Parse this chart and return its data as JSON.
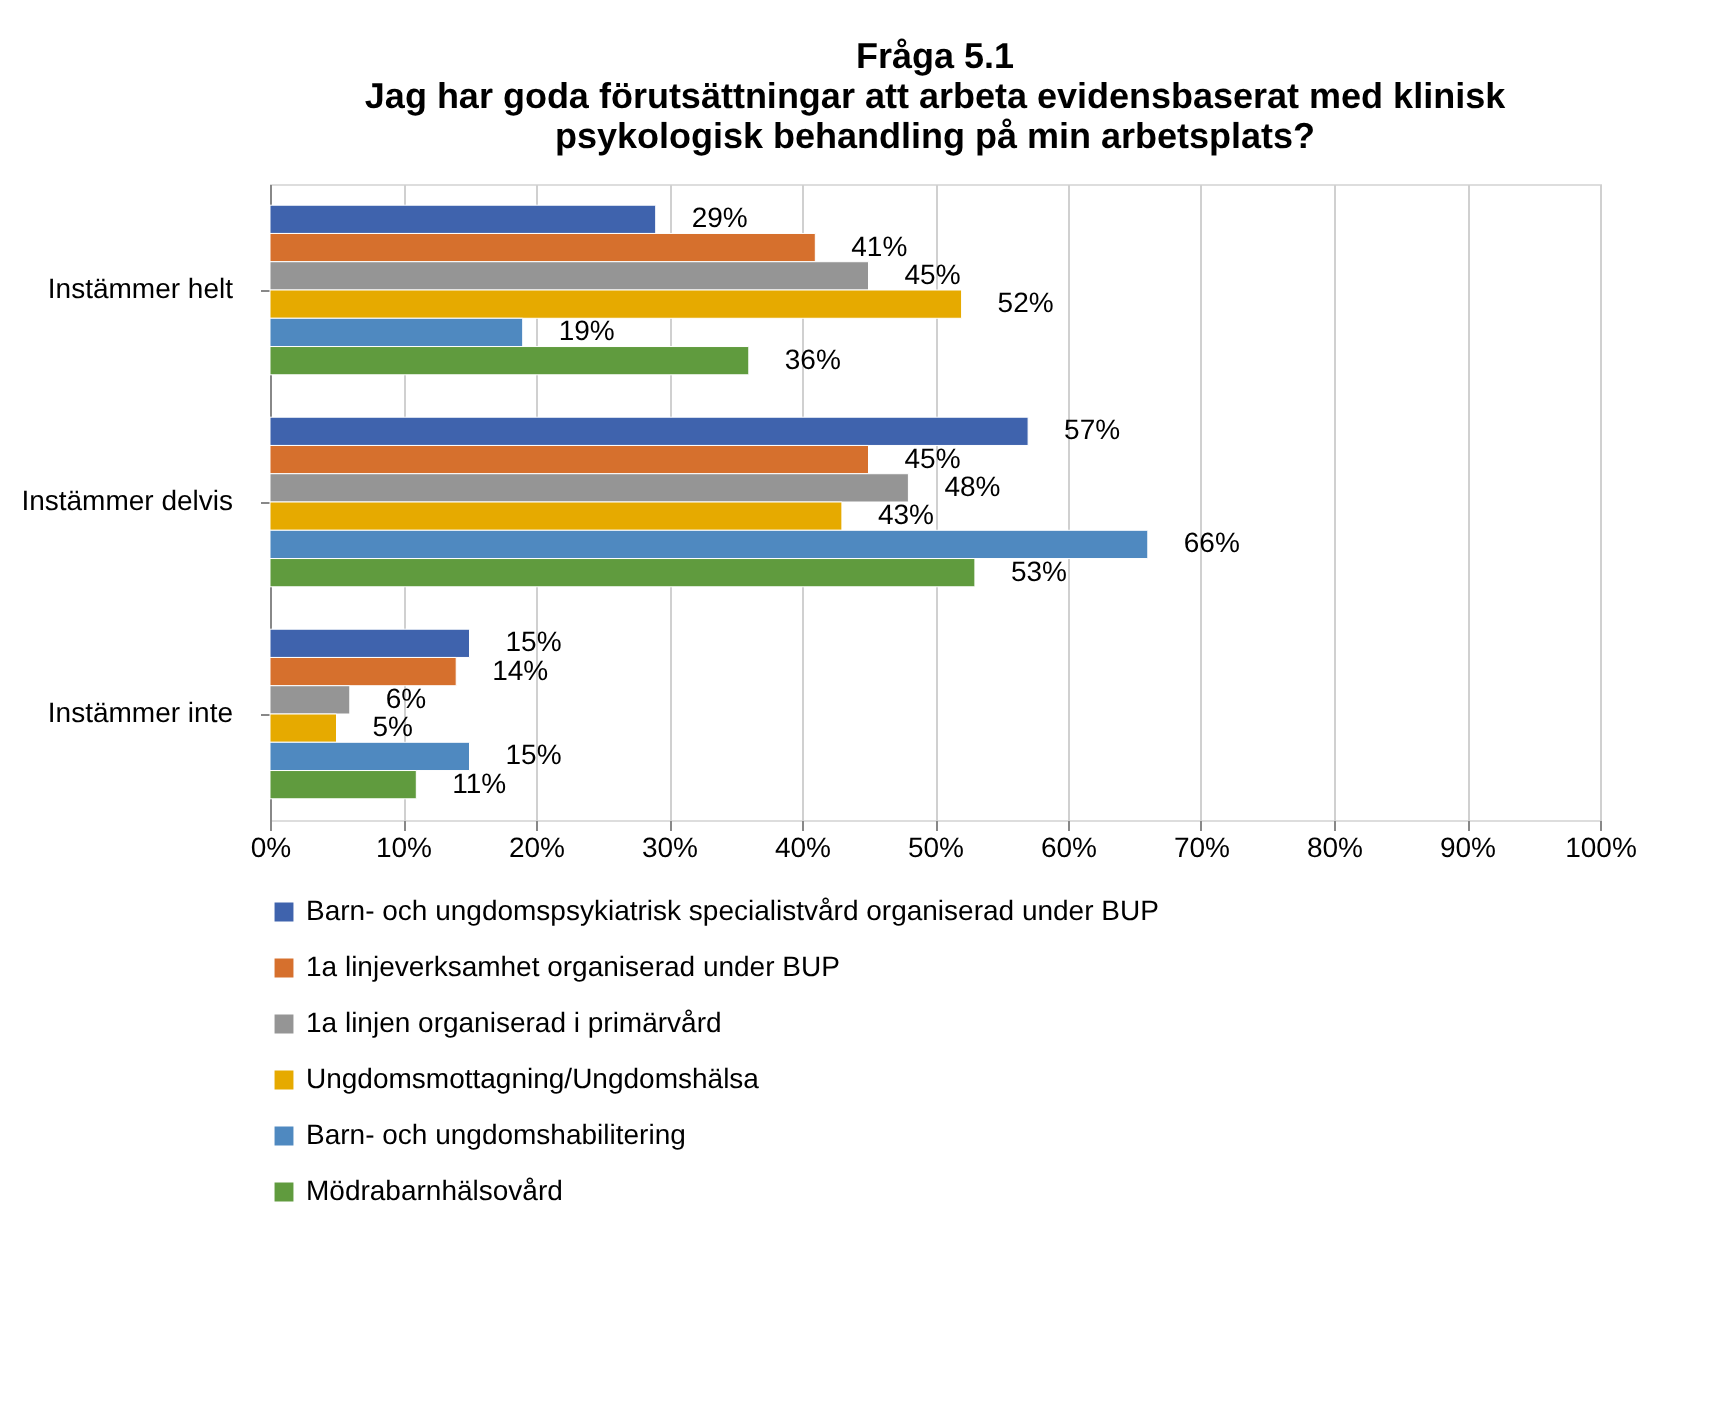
{
  "chart_data": {
    "type": "bar",
    "orientation": "horizontal",
    "title": "Fråga 5.1\nJag har goda förutsättningar att arbeta evidensbaserat med klinisk\npsykologisk behandling på min arbetsplats?",
    "categories": [
      "Instämmer helt",
      "Instämmer delvis",
      "Instämmer inte"
    ],
    "series": [
      {
        "name": "Barn- och ungdomspsykiatrisk specialistvård organiserad under BUP",
        "color": "#3f63ad",
        "values": [
          29,
          57,
          15
        ],
        "value_labels": [
          "29%",
          "57%",
          "15%"
        ]
      },
      {
        "name": "1a linjeverksamhet organiserad under BUP",
        "color": "#d6702d",
        "values": [
          41,
          45,
          14
        ],
        "value_labels": [
          "41%",
          "45%",
          "14%"
        ]
      },
      {
        "name": "1a linjen organiserad i primärvård",
        "color": "#959595",
        "values": [
          45,
          48,
          6
        ],
        "value_labels": [
          "45%",
          "48%",
          "6%"
        ]
      },
      {
        "name": "Ungdomsmottagning/Ungdomshälsa",
        "color": "#e6aa00",
        "values": [
          52,
          43,
          5
        ],
        "value_labels": [
          "52%",
          "43%",
          "5%"
        ]
      },
      {
        "name": "Barn- och ungdomshabilitering",
        "color": "#4f89c0",
        "values": [
          19,
          66,
          15
        ],
        "value_labels": [
          "19%",
          "66%",
          "15%"
        ]
      },
      {
        "name": "Mödrabarnhälsovård",
        "color": "#609b3e",
        "values": [
          36,
          53,
          11
        ],
        "value_labels": [
          "36%",
          "53%",
          "11%"
        ]
      }
    ],
    "xlim": [
      0,
      100
    ],
    "xticks": [
      {
        "value": 0,
        "label": "0%"
      },
      {
        "value": 10,
        "label": "10%"
      },
      {
        "value": 20,
        "label": "20%"
      },
      {
        "value": 30,
        "label": "30%"
      },
      {
        "value": 40,
        "label": "40%"
      },
      {
        "value": 50,
        "label": "50%"
      },
      {
        "value": 60,
        "label": "60%"
      },
      {
        "value": 70,
        "label": "70%"
      },
      {
        "value": 80,
        "label": "80%"
      },
      {
        "value": 90,
        "label": "90%"
      },
      {
        "value": 100,
        "label": "100%"
      }
    ],
    "grid": "x",
    "legend": "bottom"
  }
}
